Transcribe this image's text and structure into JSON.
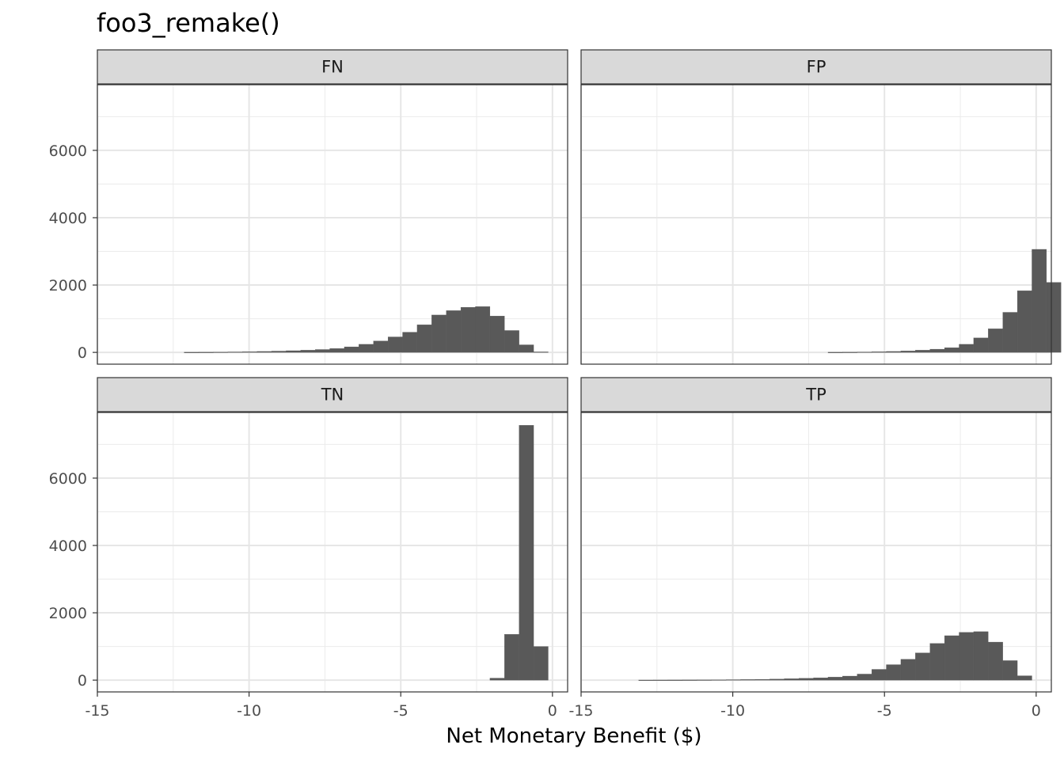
{
  "chart_data": {
    "type": "bar",
    "title": "foo3_remake()",
    "xlabel": "Net Monetary Benefit ($)",
    "ylabel": "",
    "xlim": [
      -15,
      0.5
    ],
    "ylim": [
      -350,
      7950
    ],
    "x_ticks": [
      -15,
      -10,
      -5,
      0
    ],
    "x_tick_labels": [
      "-15",
      "-10",
      "-5",
      "0"
    ],
    "y_ticks": [
      0,
      2000,
      4000,
      6000
    ],
    "y_tick_labels": [
      "0",
      "2000",
      "4000",
      "6000"
    ],
    "grid": true,
    "legend": "none",
    "bar_color": "#595959",
    "bin_width": 0.48,
    "panels": [
      {
        "name": "FN",
        "bins": [
          {
            "x": -11.9,
            "count": 5
          },
          {
            "x": -11.42,
            "count": 7
          },
          {
            "x": -10.94,
            "count": 10
          },
          {
            "x": -10.46,
            "count": 14
          },
          {
            "x": -9.98,
            "count": 20
          },
          {
            "x": -9.5,
            "count": 28
          },
          {
            "x": -9.02,
            "count": 38
          },
          {
            "x": -8.54,
            "count": 50
          },
          {
            "x": -8.06,
            "count": 65
          },
          {
            "x": -7.58,
            "count": 85
          },
          {
            "x": -7.1,
            "count": 115
          },
          {
            "x": -6.62,
            "count": 165
          },
          {
            "x": -6.14,
            "count": 240
          },
          {
            "x": -5.66,
            "count": 340
          },
          {
            "x": -5.18,
            "count": 460
          },
          {
            "x": -4.7,
            "count": 600
          },
          {
            "x": -4.22,
            "count": 820
          },
          {
            "x": -3.74,
            "count": 1110
          },
          {
            "x": -3.26,
            "count": 1240
          },
          {
            "x": -2.78,
            "count": 1340
          },
          {
            "x": -2.3,
            "count": 1360
          },
          {
            "x": -1.82,
            "count": 1080
          },
          {
            "x": -1.34,
            "count": 650
          },
          {
            "x": -0.86,
            "count": 225
          },
          {
            "x": -0.38,
            "count": 15
          }
        ]
      },
      {
        "name": "FP",
        "bins": [
          {
            "x": -6.62,
            "count": 5
          },
          {
            "x": -6.14,
            "count": 8
          },
          {
            "x": -5.66,
            "count": 12
          },
          {
            "x": -5.18,
            "count": 18
          },
          {
            "x": -4.7,
            "count": 28
          },
          {
            "x": -4.22,
            "count": 42
          },
          {
            "x": -3.74,
            "count": 65
          },
          {
            "x": -3.26,
            "count": 95
          },
          {
            "x": -2.78,
            "count": 140
          },
          {
            "x": -2.3,
            "count": 240
          },
          {
            "x": -1.82,
            "count": 430
          },
          {
            "x": -1.34,
            "count": 700
          },
          {
            "x": -0.86,
            "count": 1190
          },
          {
            "x": -0.38,
            "count": 1830
          },
          {
            "x": 0.1,
            "count": 3060
          },
          {
            "x": 0.58,
            "count": 2080
          }
        ]
      },
      {
        "name": "TN",
        "bins": [
          {
            "x": -1.82,
            "count": 60
          },
          {
            "x": -1.34,
            "count": 1360
          },
          {
            "x": -0.86,
            "count": 7570
          },
          {
            "x": -0.38,
            "count": 1000
          }
        ]
      },
      {
        "name": "TP",
        "bins": [
          {
            "x": -12.86,
            "count": 3
          },
          {
            "x": -12.38,
            "count": 4
          },
          {
            "x": -11.9,
            "count": 5
          },
          {
            "x": -11.42,
            "count": 7
          },
          {
            "x": -10.94,
            "count": 9
          },
          {
            "x": -10.46,
            "count": 11
          },
          {
            "x": -9.98,
            "count": 14
          },
          {
            "x": -9.5,
            "count": 18
          },
          {
            "x": -9.02,
            "count": 24
          },
          {
            "x": -8.54,
            "count": 32
          },
          {
            "x": -8.06,
            "count": 42
          },
          {
            "x": -7.58,
            "count": 55
          },
          {
            "x": -7.1,
            "count": 70
          },
          {
            "x": -6.62,
            "count": 90
          },
          {
            "x": -6.14,
            "count": 120
          },
          {
            "x": -5.66,
            "count": 180
          },
          {
            "x": -5.18,
            "count": 320
          },
          {
            "x": -4.7,
            "count": 460
          },
          {
            "x": -4.22,
            "count": 620
          },
          {
            "x": -3.74,
            "count": 810
          },
          {
            "x": -3.26,
            "count": 1090
          },
          {
            "x": -2.78,
            "count": 1320
          },
          {
            "x": -2.3,
            "count": 1420
          },
          {
            "x": -1.82,
            "count": 1440
          },
          {
            "x": -1.34,
            "count": 1130
          },
          {
            "x": -0.86,
            "count": 580
          },
          {
            "x": -0.38,
            "count": 130
          }
        ]
      }
    ]
  }
}
